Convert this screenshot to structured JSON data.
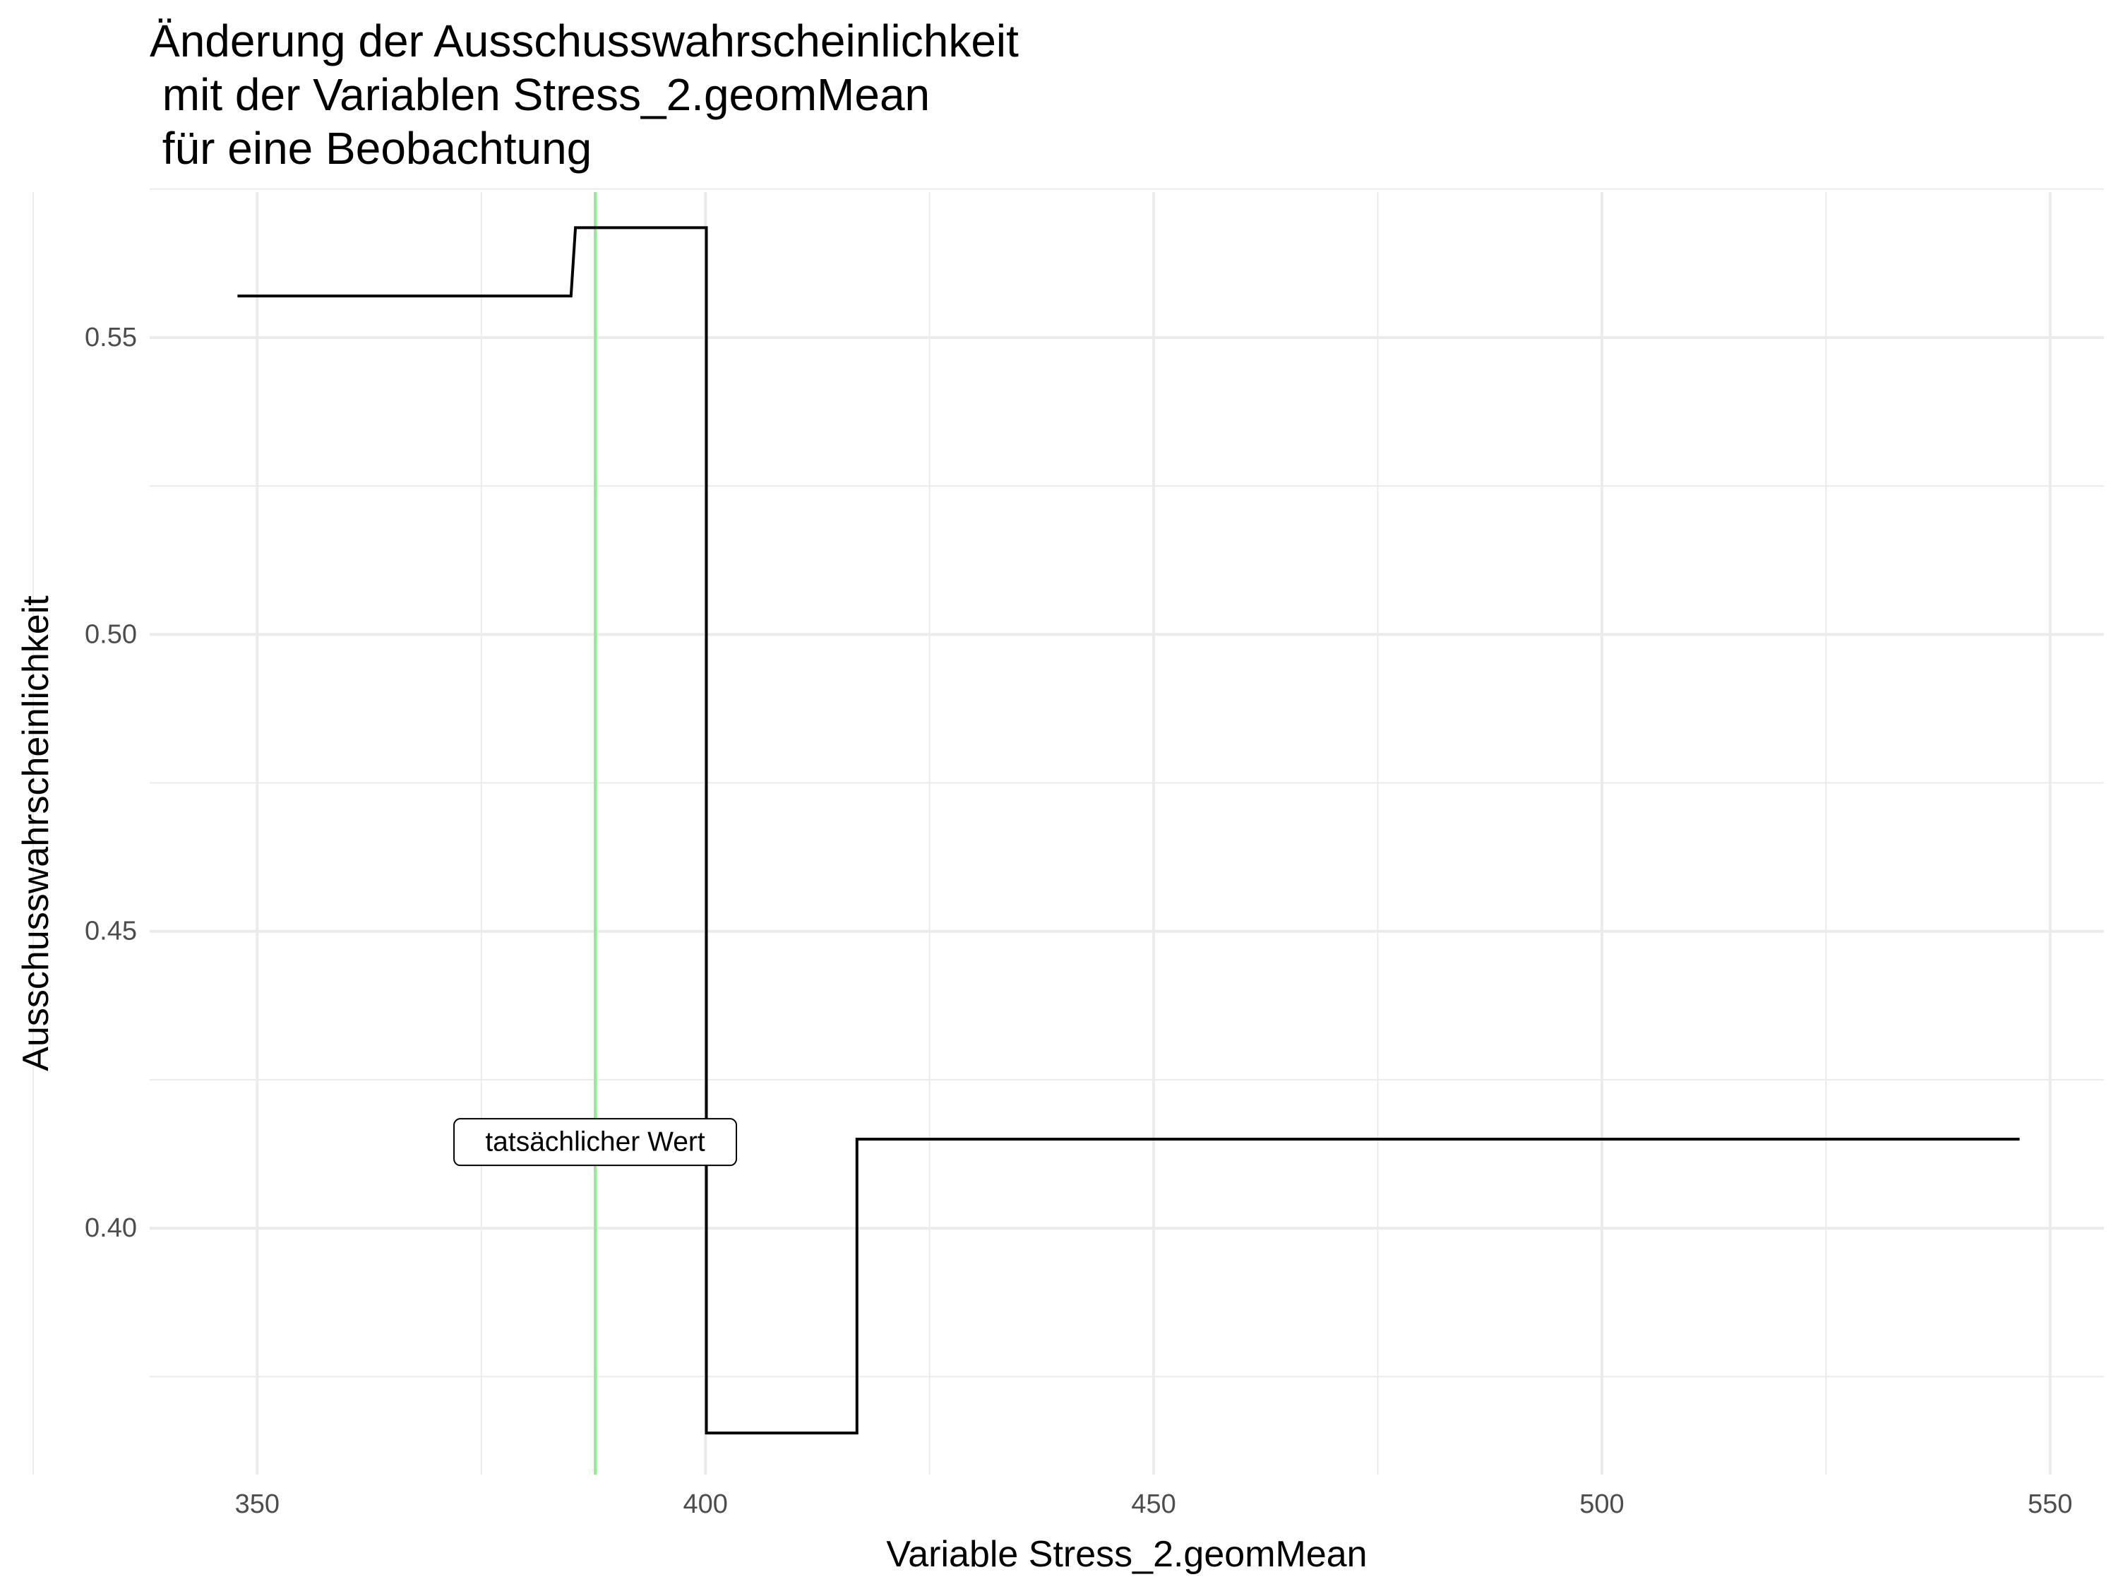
{
  "chart_data": {
    "type": "line",
    "title_lines": [
      "Änderung der Ausschusswahrscheinlichkeit",
      " mit der Variablen Stress_2.geomMean",
      " für eine Beobachtung"
    ],
    "xlabel": "Variable Stress_2.geomMean",
    "ylabel": "Ausschusswahrscheinlichkeit",
    "x_ticks": [
      350,
      400,
      450,
      500,
      550
    ],
    "y_ticks": [
      0.4,
      0.45,
      0.5,
      0.55
    ],
    "y_tick_labels": [
      "0.40",
      "0.45",
      "0.50",
      "0.55"
    ],
    "xlim": [
      338,
      556
    ],
    "ylim": [
      0.3585,
      0.5745
    ],
    "grid": true,
    "step_series": {
      "x": [
        347.8,
        385,
        385.5,
        400.1,
        400.1,
        416.9,
        416.9,
        546.6
      ],
      "y": [
        0.557,
        0.557,
        0.5685,
        0.5685,
        0.3655,
        0.3655,
        0.415,
        0.415
      ]
    },
    "reference_line": {
      "x": 387.7,
      "color": "#90ee90",
      "label": "tatsächlicher Wert",
      "label_y": 0.4145
    },
    "line_color": "#000000"
  }
}
